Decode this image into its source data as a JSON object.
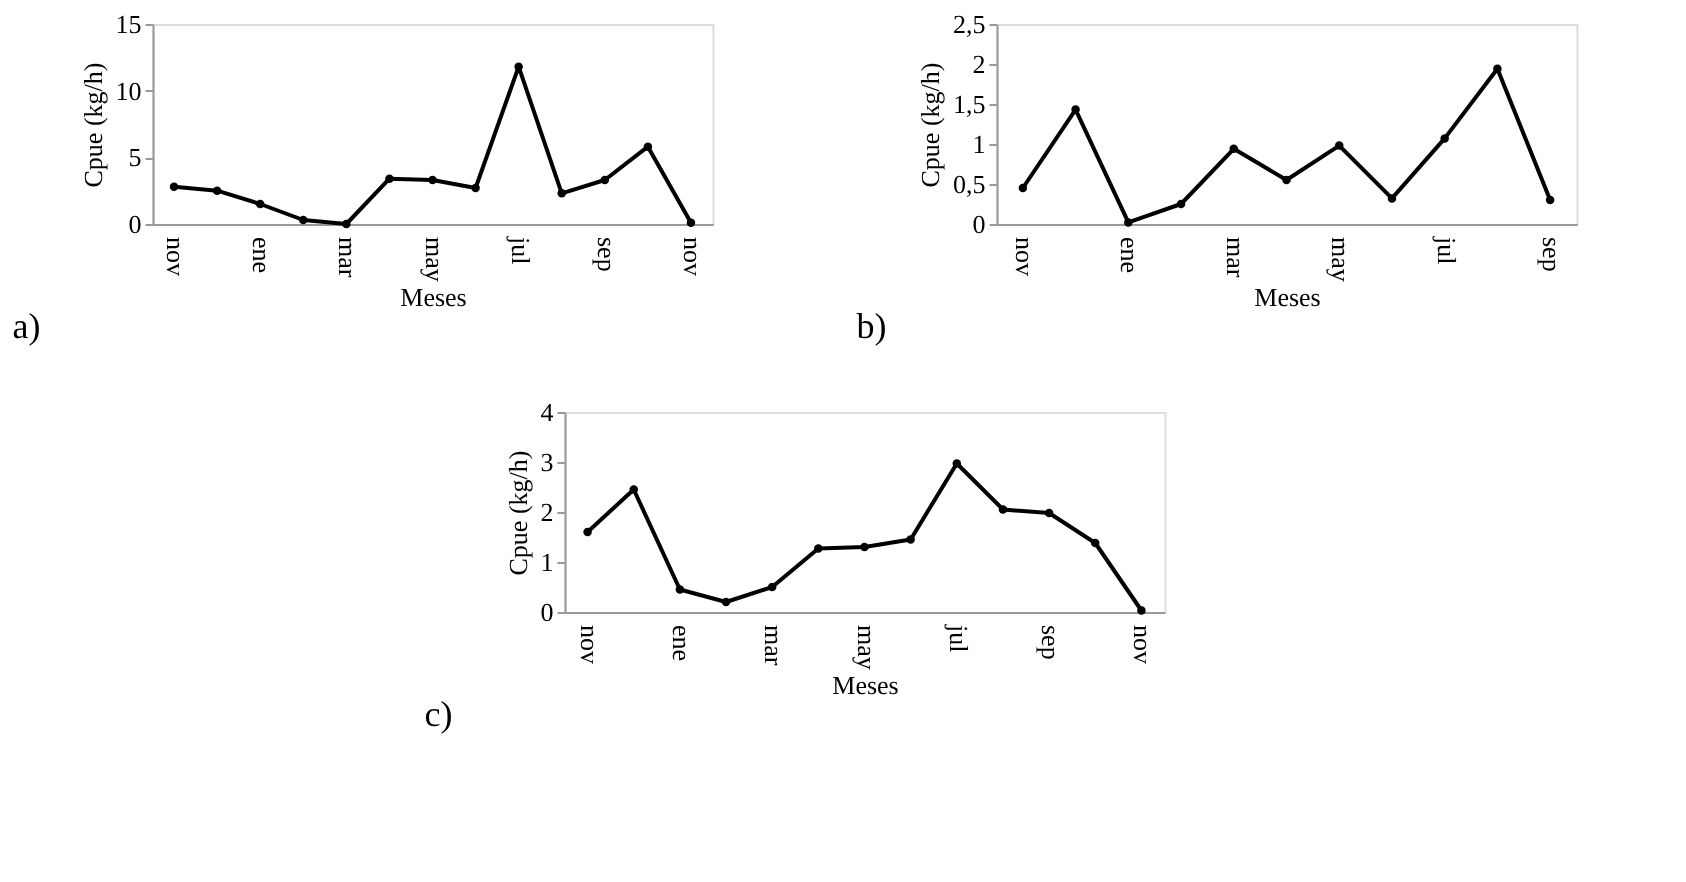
{
  "chart_data": [
    {
      "type": "line",
      "categories": [
        "nov",
        null,
        "ene",
        null,
        "mar",
        null,
        "may",
        null,
        "jul",
        null,
        "sep",
        null,
        "nov"
      ],
      "xlabel": "Meses",
      "ylabel": "Cpue (kg/h)",
      "ylim": [
        0,
        15
      ],
      "yticks": [
        0,
        5,
        10,
        15
      ],
      "marker": "circle",
      "grid": false,
      "annotations": [
        "a)"
      ],
      "series": [
        {
          "color": "#000000",
          "values": [
            2.8,
            2.5,
            1.5,
            0.3,
            0.0,
            3.4,
            3.3,
            2.7,
            11.8,
            2.3,
            3.3,
            5.8,
            0.1
          ]
        }
      ]
    },
    {
      "type": "line",
      "categories": [
        "nov",
        null,
        "ene",
        null,
        "mar",
        null,
        "may",
        null,
        "jul",
        null,
        "sep"
      ],
      "xlabel": "Meses",
      "ylabel": "Cpue (kg/h)",
      "ylim": [
        0,
        2.5
      ],
      "yticks": [
        0,
        {
          "value": 0.5,
          "label": "0,5"
        },
        1,
        {
          "value": 1.5,
          "label": "1,5"
        },
        2,
        {
          "value": 2.5,
          "label": "2,5"
        }
      ],
      "marker": "circle",
      "grid": false,
      "annotations": [
        "b)"
      ],
      "series": [
        {
          "color": "#000000",
          "values": [
            0.45,
            1.43,
            0.02,
            0.25,
            0.94,
            0.55,
            0.98,
            0.32,
            1.07,
            1.94,
            0.3
          ]
        }
      ]
    },
    {
      "type": "line",
      "categories": [
        "nov",
        null,
        "ene",
        null,
        "mar",
        null,
        "may",
        null,
        "jul",
        null,
        "sep",
        null,
        "nov"
      ],
      "xlabel": "Meses",
      "ylabel": "Cpue (kg/h)",
      "ylim": [
        0,
        4
      ],
      "yticks": [
        0,
        1,
        2,
        3,
        4
      ],
      "marker": "circle",
      "grid": false,
      "annotations": [
        "c)"
      ],
      "series": [
        {
          "color": "#000000",
          "values": [
            1.6,
            2.45,
            0.45,
            0.2,
            0.5,
            1.27,
            1.3,
            1.45,
            2.97,
            2.05,
            1.98,
            1.38,
            0.03
          ]
        }
      ]
    }
  ]
}
